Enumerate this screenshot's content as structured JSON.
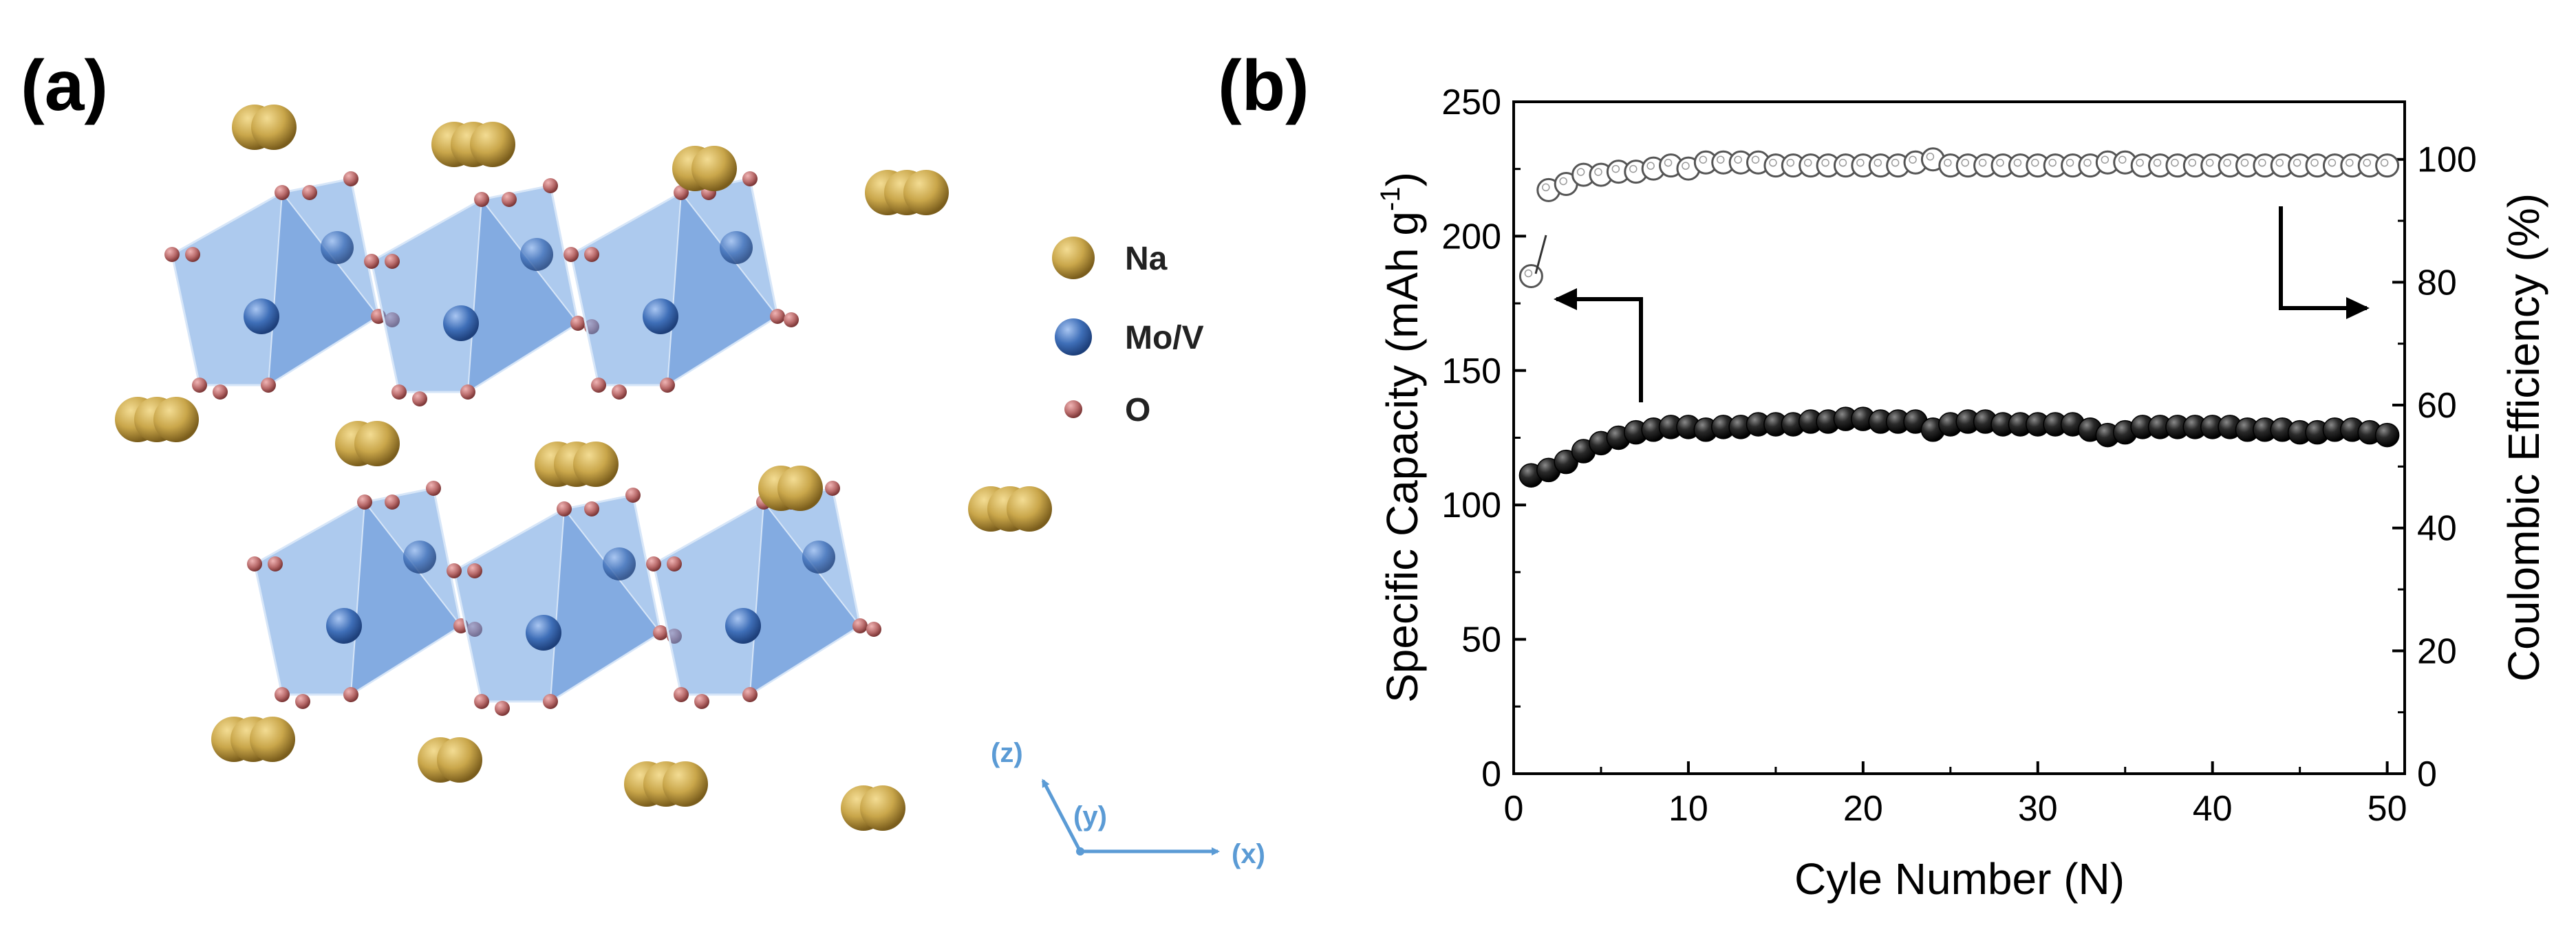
{
  "panel_a": {
    "label": "(a)",
    "legend": [
      {
        "label": "Na",
        "color": "#c9a64a"
      },
      {
        "label": "Mo/V",
        "color": "#3f6fb8"
      },
      {
        "label": "O",
        "color": "#b86a6a"
      }
    ],
    "axes": {
      "z": "(z)",
      "y": "(y)",
      "x": "(x)"
    },
    "polyhedron_color": "#6a9fe0"
  },
  "panel_b": {
    "label": "(b)"
  },
  "chart_data": {
    "type": "scatter",
    "xlabel": "Cyle Number (N)",
    "ylabel_left": "Specific Capacity (mAh g",
    "ylabel_left_sup": "-1",
    "ylabel_left_end": ")",
    "ylabel_right": "Coulombic Efficiency (%)",
    "xlim": [
      0,
      51
    ],
    "ylim_left": [
      0,
      250
    ],
    "ylim_right": [
      0,
      109.375
    ],
    "x_ticks": [
      0,
      10,
      20,
      30,
      40,
      50
    ],
    "y_left_ticks": [
      0,
      50,
      100,
      150,
      200,
      250
    ],
    "y_right_ticks": [
      0,
      20,
      40,
      60,
      80,
      100
    ],
    "x": [
      1,
      2,
      3,
      4,
      5,
      6,
      7,
      8,
      9,
      10,
      11,
      12,
      13,
      14,
      15,
      16,
      17,
      18,
      19,
      20,
      21,
      22,
      23,
      24,
      25,
      26,
      27,
      28,
      29,
      30,
      31,
      32,
      33,
      34,
      35,
      36,
      37,
      38,
      39,
      40,
      41,
      42,
      43,
      44,
      45,
      46,
      47,
      48,
      49,
      50
    ],
    "series": [
      {
        "axis": "left",
        "marker": "filled",
        "color": "#111111",
        "values": [
          111,
          113,
          116,
          120,
          123,
          125,
          127,
          128,
          129,
          129,
          128,
          129,
          129,
          130,
          130,
          130,
          131,
          131,
          132,
          132,
          131,
          131,
          131,
          128,
          130,
          131,
          131,
          130,
          130,
          130,
          130,
          130,
          128,
          126,
          127,
          129,
          129,
          129,
          129,
          129,
          129,
          128,
          128,
          128,
          127,
          127,
          128,
          128,
          127,
          126
        ]
      },
      {
        "axis": "right",
        "marker": "open",
        "color": "#555555",
        "values": [
          81,
          95,
          96,
          97.5,
          97.5,
          98,
          98,
          98.5,
          99,
          98.5,
          99.5,
          99.5,
          99.5,
          99.5,
          99,
          99,
          99,
          99,
          99,
          99,
          99,
          99,
          99.5,
          100,
          99,
          99,
          99,
          99,
          99,
          99,
          99,
          99,
          99,
          99.5,
          99.5,
          99,
          99,
          99,
          99,
          99,
          99,
          99,
          99,
          99,
          99,
          99,
          99,
          99,
          99,
          99
        ]
      }
    ]
  }
}
